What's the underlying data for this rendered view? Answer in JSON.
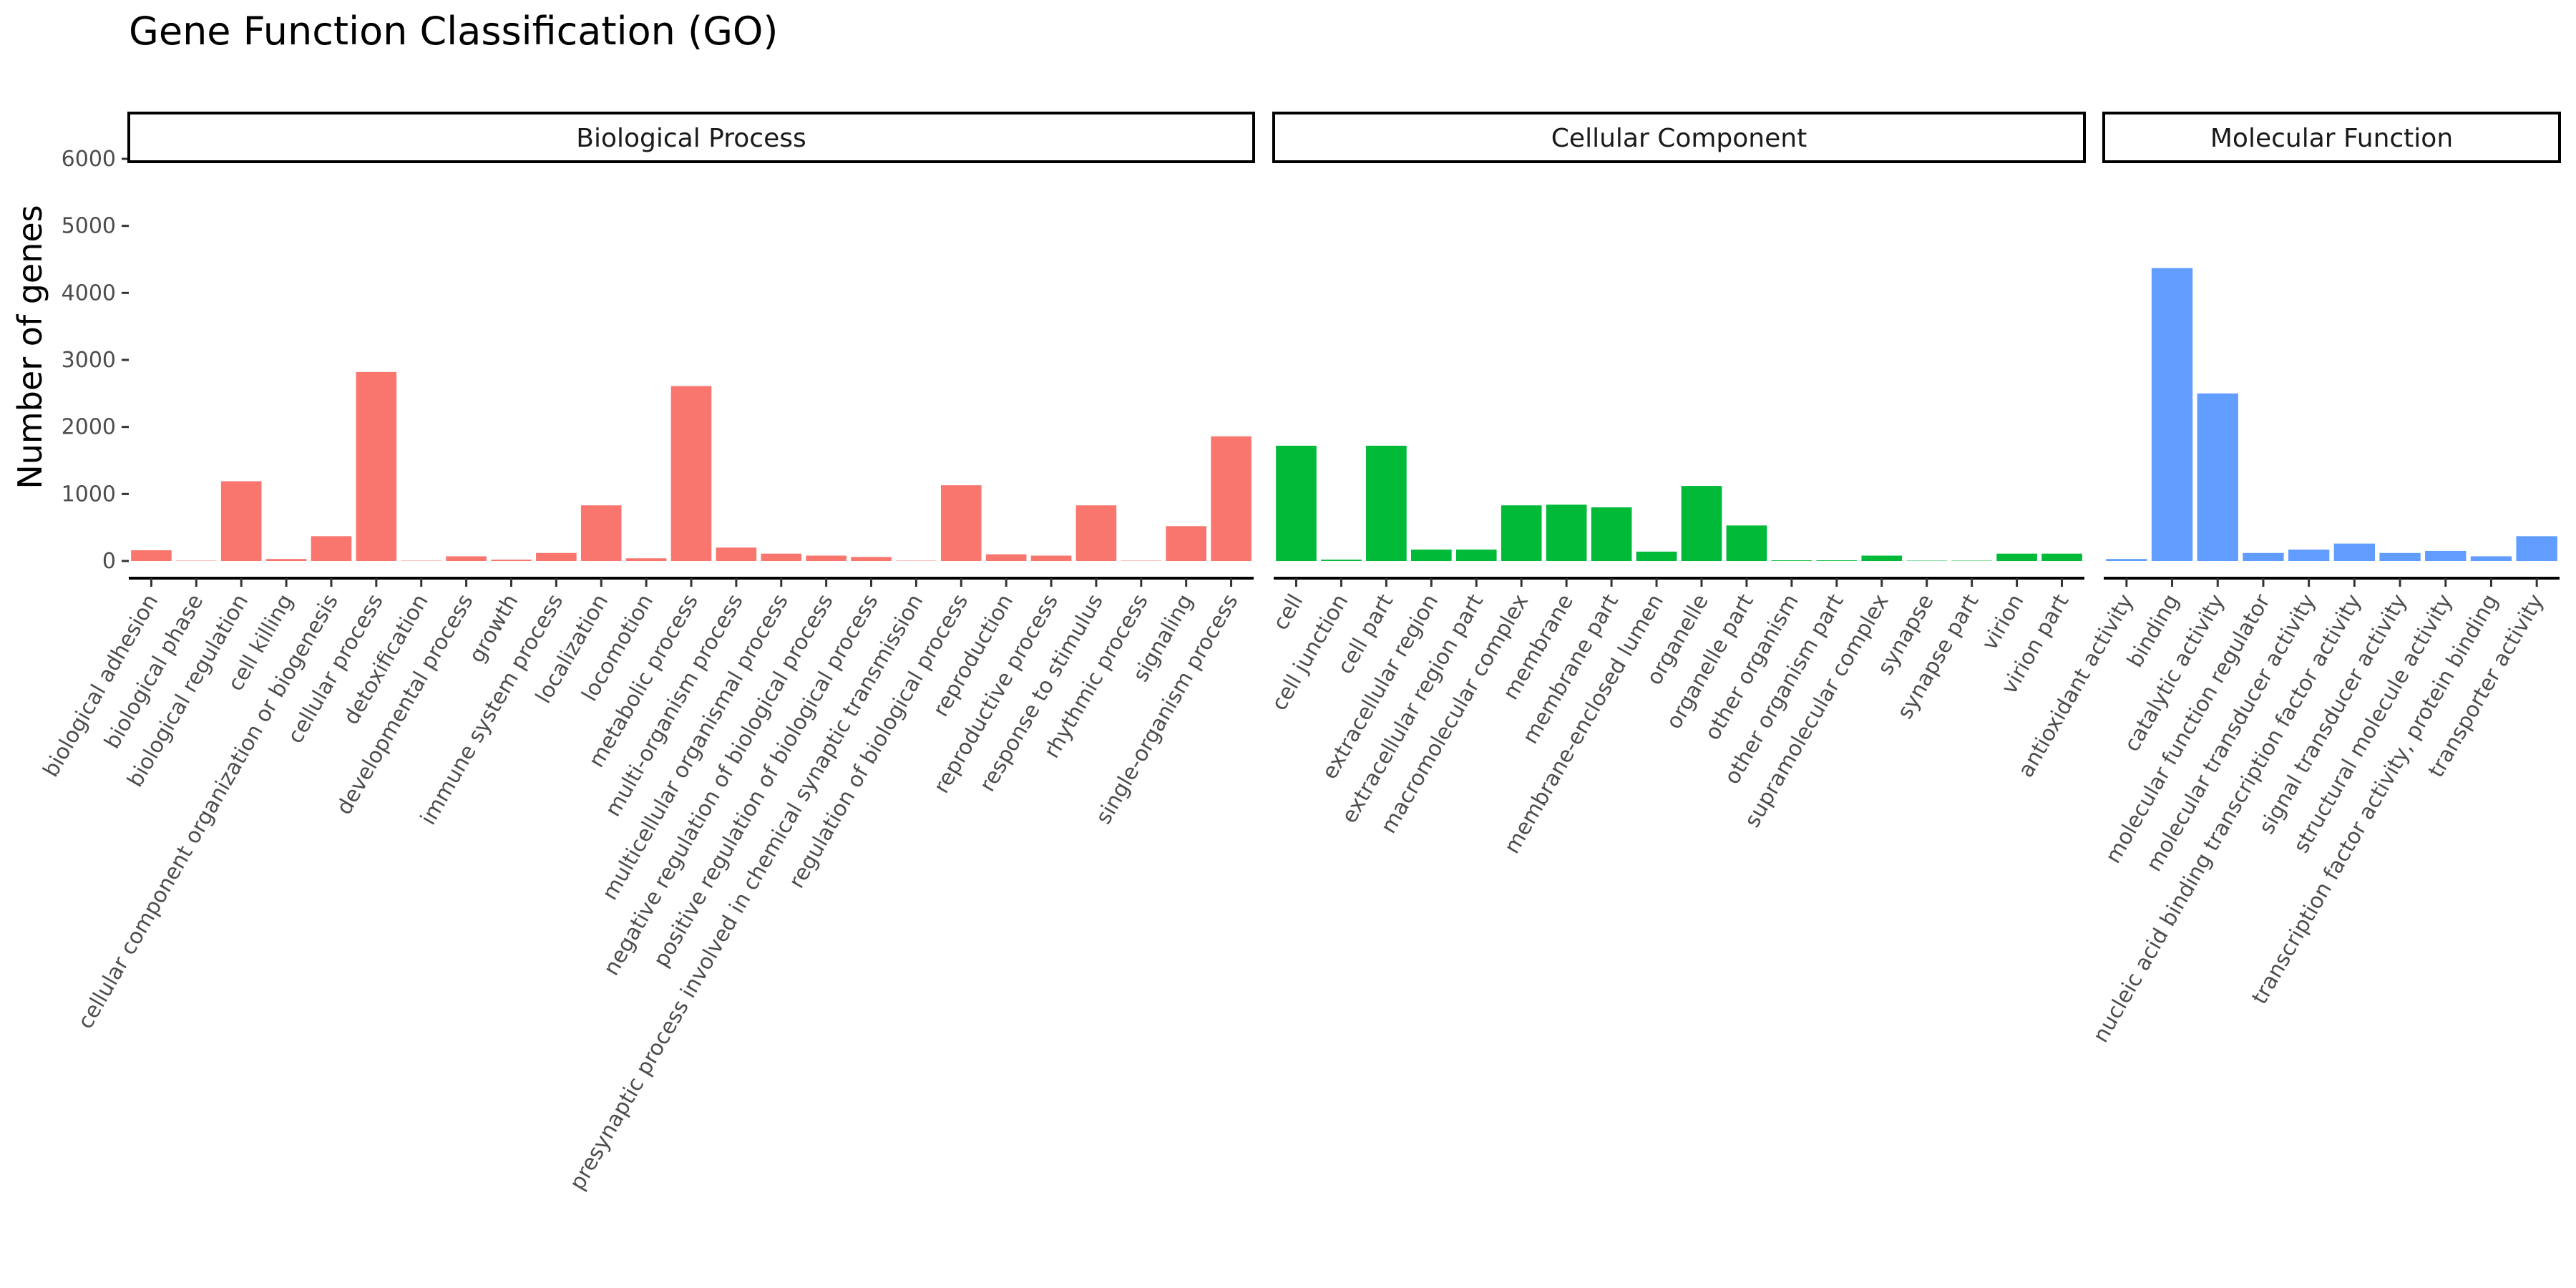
{
  "chart_data": {
    "type": "bar",
    "title": "Gene Function Classification (GO)",
    "xlabel": "",
    "ylabel": "Number of genes",
    "ylim": [
      0,
      6000
    ],
    "yticks": [
      0,
      1000,
      2000,
      3000,
      4000,
      5000,
      6000
    ],
    "grid": false,
    "legend": "none",
    "facets": [
      {
        "name": "Biological Process",
        "color": "#F8766D",
        "categories": [
          "biological adhesion",
          "biological phase",
          "biological regulation",
          "cell killing",
          "cellular component organization or biogenesis",
          "cellular process",
          "detoxification",
          "developmental process",
          "growth",
          "immune system process",
          "localization",
          "locomotion",
          "metabolic process",
          "multi-organism process",
          "multicellular organismal process",
          "negative regulation of biological process",
          "positive regulation of biological process",
          "presynaptic process involved in chemical synaptic transmission",
          "regulation of biological process",
          "reproduction",
          "reproductive process",
          "response to stimulus",
          "rhythmic process",
          "signaling",
          "single-organism process"
        ],
        "values": [
          160,
          5,
          1190,
          30,
          370,
          2820,
          5,
          70,
          20,
          120,
          830,
          40,
          2610,
          200,
          110,
          80,
          60,
          5,
          1130,
          100,
          80,
          830,
          5,
          520,
          1860
        ]
      },
      {
        "name": "Cellular Component",
        "color": "#00BA38",
        "categories": [
          "cell",
          "cell junction",
          "cell part",
          "extracellular region",
          "extracellular region part",
          "macromolecular complex",
          "membrane",
          "membrane part",
          "membrane-enclosed lumen",
          "organelle",
          "organelle part",
          "other organism",
          "other organism part",
          "supramolecular complex",
          "synapse",
          "synapse part",
          "virion",
          "virion part"
        ],
        "values": [
          1720,
          20,
          1720,
          170,
          170,
          830,
          840,
          800,
          140,
          1120,
          530,
          10,
          10,
          80,
          5,
          5,
          110,
          110
        ]
      },
      {
        "name": "Molecular Function",
        "color": "#619CFF",
        "categories": [
          "antioxidant activity",
          "binding",
          "catalytic activity",
          "molecular function regulator",
          "molecular transducer activity",
          "nucleic acid binding transcription factor activity",
          "signal transducer activity",
          "structural molecule activity",
          "transcription factor activity, protein binding",
          "transporter activity"
        ],
        "values": [
          30,
          4370,
          2500,
          120,
          170,
          260,
          120,
          150,
          70,
          370
        ]
      }
    ]
  }
}
